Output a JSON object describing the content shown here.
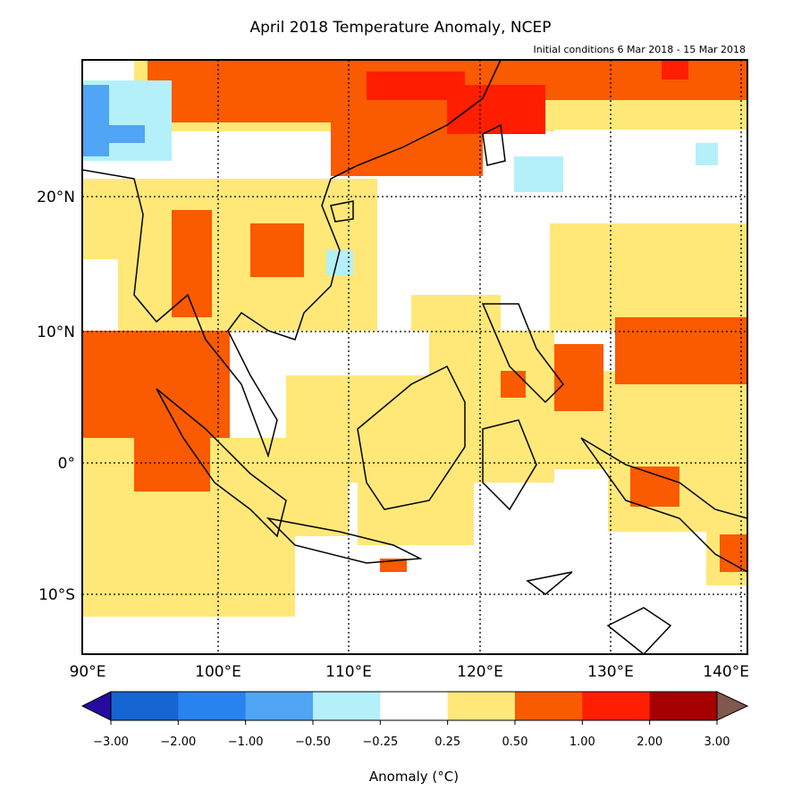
{
  "map": {
    "title": "April 2018 Temperature Anomaly, NCEP",
    "subtitle": "Initial conditions 6 Mar 2018 - 15 Mar 2018",
    "lat_labels": [
      "20°N",
      "10°N",
      "0°",
      "10°S"
    ],
    "lon_labels": [
      "90°E",
      "100°E",
      "110°E",
      "120°E",
      "130°E",
      "140°E"
    ],
    "colorbar": {
      "label": "Anomaly (°C)",
      "ticks": [
        {
          "value": -3,
          "label": "−3.00"
        },
        {
          "value": -2,
          "label": "−2.00"
        },
        {
          "value": -1,
          "label": "−1.00"
        },
        {
          "value": -0.5,
          "label": "−0.50"
        },
        {
          "value": -0.25,
          "label": "−0.25"
        },
        {
          "value": 0.25,
          "label": "0.25"
        },
        {
          "value": 0.5,
          "label": "0.50"
        },
        {
          "value": 1,
          "label": "1.00"
        },
        {
          "value": 2,
          "label": "2.00"
        },
        {
          "value": 3,
          "label": "3.00"
        }
      ],
      "colors": [
        "#1464d2",
        "#2882f0",
        "#50a5f5",
        "#b4f0fa",
        "#ffffff",
        "#ffe878",
        "#fa5a00",
        "#ff1e00",
        "#a50000"
      ],
      "under_color": "#280aa0",
      "over_color": "#82584e"
    }
  }
}
